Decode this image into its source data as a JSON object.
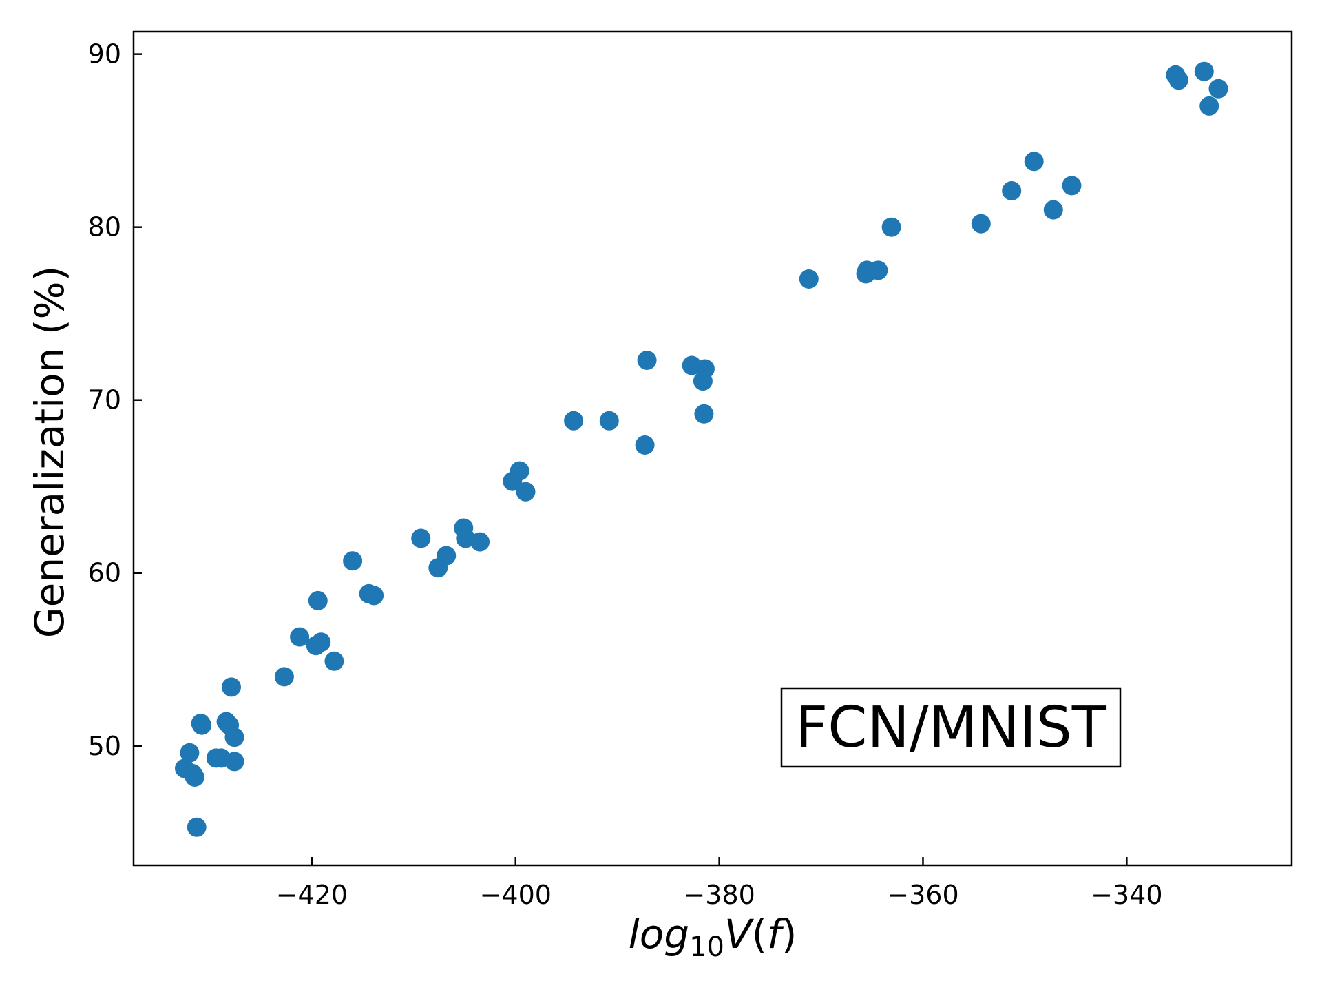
{
  "chart_data": {
    "type": "scatter",
    "title": "",
    "xlabel": {
      "base": "log",
      "sub": "10",
      "tail_v": "V",
      "tail_open": "(",
      "tail_f": "f",
      "tail_close": ")"
    },
    "ylabel": "Generalization (%)",
    "annotation": "FCN/MNIST",
    "xlim": [
      -437.5,
      -323.8
    ],
    "ylim": [
      43.1,
      91.3
    ],
    "xticks": [
      -420,
      -400,
      -380,
      -360,
      -340
    ],
    "xtick_labels": [
      "−420",
      "−400",
      "−380",
      "−360",
      "−340"
    ],
    "yticks": [
      50,
      60,
      70,
      80,
      90
    ],
    "ytick_labels": [
      "50",
      "60",
      "70",
      "80",
      "90"
    ],
    "grid": false,
    "marker_color": "#1f77b4",
    "series": [
      {
        "points": [
          [
            -431.3,
            45.3
          ],
          [
            -431.5,
            48.2
          ],
          [
            -431.7,
            48.4
          ],
          [
            -432.5,
            48.7
          ],
          [
            -432.0,
            49.6
          ],
          [
            -430.8,
            51.2
          ],
          [
            -430.9,
            51.3
          ],
          [
            -428.4,
            51.4
          ],
          [
            -428.1,
            51.2
          ],
          [
            -427.6,
            50.5
          ],
          [
            -429.4,
            49.3
          ],
          [
            -428.9,
            49.3
          ],
          [
            -427.6,
            49.1
          ],
          [
            -427.9,
            53.4
          ],
          [
            -422.7,
            54.0
          ],
          [
            -421.2,
            56.3
          ],
          [
            -419.6,
            55.8
          ],
          [
            -419.1,
            56.0
          ],
          [
            -417.8,
            54.9
          ],
          [
            -419.4,
            58.4
          ],
          [
            -416.0,
            60.7
          ],
          [
            -414.4,
            58.8
          ],
          [
            -413.9,
            58.7
          ],
          [
            -409.3,
            62.0
          ],
          [
            -407.6,
            60.3
          ],
          [
            -406.8,
            61.0
          ],
          [
            -405.1,
            62.6
          ],
          [
            -404.9,
            62.0
          ],
          [
            -403.5,
            61.8
          ],
          [
            -400.3,
            65.3
          ],
          [
            -399.6,
            65.9
          ],
          [
            -399.0,
            64.7
          ],
          [
            -394.3,
            68.8
          ],
          [
            -390.8,
            68.8
          ],
          [
            -387.3,
            67.4
          ],
          [
            -387.1,
            72.3
          ],
          [
            -382.7,
            72.0
          ],
          [
            -381.4,
            71.8
          ],
          [
            -381.6,
            71.1
          ],
          [
            -381.5,
            69.2
          ],
          [
            -371.2,
            77.0
          ],
          [
            -365.5,
            77.5
          ],
          [
            -364.4,
            77.5
          ],
          [
            -365.6,
            77.3
          ],
          [
            -363.1,
            80.0
          ],
          [
            -354.3,
            80.2
          ],
          [
            -351.3,
            82.1
          ],
          [
            -349.1,
            83.8
          ],
          [
            -347.2,
            81.0
          ],
          [
            -345.4,
            82.4
          ],
          [
            -335.2,
            88.8
          ],
          [
            -334.9,
            88.5
          ],
          [
            -332.4,
            89.0
          ],
          [
            -331.9,
            87.0
          ],
          [
            -331.0,
            88.0
          ]
        ]
      }
    ]
  }
}
